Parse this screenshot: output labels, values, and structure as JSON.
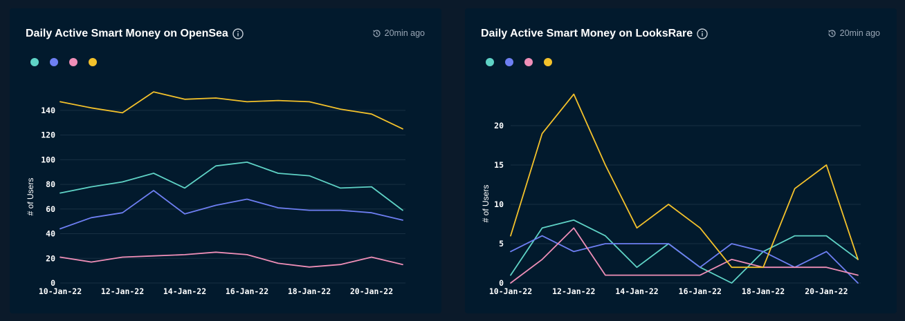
{
  "colors": {
    "background": "#0b1a2a",
    "panel": "#021a2d",
    "grid": "#183043",
    "series": [
      "#5fd3c6",
      "#6e7ff3",
      "#f08fb8",
      "#f4c22b"
    ]
  },
  "panels": [
    {
      "title": "Daily Active Smart Money on OpenSea",
      "info_icon": "info-icon",
      "timestamp_icon": "clock-icon",
      "timestamp": "20min ago"
    },
    {
      "title": "Daily Active Smart Money on LooksRare",
      "info_icon": "info-icon",
      "timestamp_icon": "clock-icon",
      "timestamp": "20min ago"
    }
  ],
  "chart_data": [
    {
      "type": "line",
      "title": "Daily Active Smart Money on OpenSea",
      "xlabel": "",
      "ylabel": "# of Users",
      "x": [
        "10-Jan-22",
        "11-Jan-22",
        "12-Jan-22",
        "13-Jan-22",
        "14-Jan-22",
        "15-Jan-22",
        "16-Jan-22",
        "17-Jan-22",
        "18-Jan-22",
        "19-Jan-22",
        "20-Jan-22",
        "21-Jan-22"
      ],
      "x_tick_labels": [
        "10-Jan-22",
        "12-Jan-22",
        "14-Jan-22",
        "16-Jan-22",
        "18-Jan-22",
        "20-Jan-22"
      ],
      "ylim": [
        0,
        150
      ],
      "y_ticks": [
        0,
        20,
        40,
        60,
        80,
        100,
        120,
        140
      ],
      "grid": true,
      "legend": "top-left",
      "series": [
        {
          "color": "#5fd3c6",
          "values": [
            73,
            78,
            82,
            89,
            77,
            95,
            98,
            89,
            87,
            77,
            78,
            59
          ]
        },
        {
          "color": "#6e7ff3",
          "values": [
            44,
            53,
            57,
            75,
            56,
            63,
            68,
            61,
            59,
            59,
            57,
            51
          ]
        },
        {
          "color": "#f08fb8",
          "values": [
            21,
            17,
            21,
            22,
            23,
            25,
            23,
            16,
            13,
            15,
            21,
            15
          ]
        },
        {
          "color": "#f4c22b",
          "values": [
            147,
            142,
            138,
            155,
            149,
            150,
            147,
            148,
            147,
            141,
            137,
            125
          ]
        }
      ]
    },
    {
      "type": "line",
      "title": "Daily Active Smart Money on LooksRare",
      "xlabel": "",
      "ylabel": "# of Users",
      "x": [
        "10-Jan-22",
        "11-Jan-22",
        "12-Jan-22",
        "13-Jan-22",
        "14-Jan-22",
        "15-Jan-22",
        "16-Jan-22",
        "17-Jan-22",
        "18-Jan-22",
        "19-Jan-22",
        "20-Jan-22",
        "21-Jan-22"
      ],
      "x_tick_labels": [
        "10-Jan-22",
        "12-Jan-22",
        "14-Jan-22",
        "16-Jan-22",
        "18-Jan-22",
        "20-Jan-22"
      ],
      "ylim": [
        0,
        25
      ],
      "y_ticks": [
        0,
        5,
        10,
        15,
        20
      ],
      "grid": true,
      "legend": "top-left",
      "series": [
        {
          "color": "#5fd3c6",
          "values": [
            1,
            7,
            8,
            6,
            2,
            5,
            2,
            0,
            4,
            6,
            6,
            3
          ]
        },
        {
          "color": "#6e7ff3",
          "values": [
            4,
            6,
            4,
            5,
            5,
            5,
            2,
            5,
            4,
            2,
            4,
            0
          ]
        },
        {
          "color": "#f08fb8",
          "values": [
            0,
            3,
            7,
            1,
            1,
            1,
            1,
            3,
            2,
            2,
            2,
            1
          ]
        },
        {
          "color": "#f4c22b",
          "values": [
            6,
            19,
            24,
            15,
            7,
            10,
            7,
            2,
            2,
            12,
            15,
            3
          ]
        }
      ]
    }
  ]
}
